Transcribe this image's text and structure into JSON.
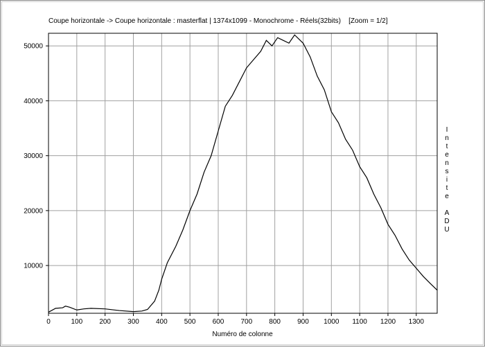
{
  "chart_data": {
    "type": "line",
    "title": "Coupe horizontale -> Coupe horizontale : masterflat | 1374x1099 - Monochrome - Réels(32bits)    [Zoom = 1/2]",
    "x_label": "Numéro de colonne",
    "y_label": "Intensite ADU",
    "xlim": [
      0,
      1374
    ],
    "ylim": [
      1300,
      52300
    ],
    "xticks": [
      0,
      100,
      200,
      300,
      400,
      500,
      600,
      700,
      800,
      900,
      1000,
      1100,
      1200,
      1300
    ],
    "yticks": [
      10000,
      20000,
      30000,
      40000,
      50000
    ],
    "grid": true,
    "x": [
      0,
      25,
      50,
      60,
      75,
      100,
      125,
      150,
      200,
      250,
      300,
      330,
      350,
      375,
      390,
      400,
      420,
      450,
      475,
      500,
      525,
      550,
      575,
      600,
      625,
      650,
      675,
      700,
      725,
      750,
      770,
      790,
      810,
      830,
      850,
      870,
      900,
      925,
      950,
      975,
      1000,
      1025,
      1050,
      1075,
      1100,
      1125,
      1150,
      1175,
      1200,
      1225,
      1250,
      1275,
      1300,
      1325,
      1350,
      1374
    ],
    "series": [
      {
        "color": "#000000",
        "values": [
          1500,
          2200,
          2300,
          2600,
          2400,
          1900,
          2100,
          2200,
          2100,
          1800,
          1600,
          1700,
          2000,
          3500,
          5500,
          7500,
          10500,
          13500,
          16500,
          20000,
          23000,
          27000,
          30000,
          34500,
          39000,
          41000,
          43500,
          46000,
          47500,
          49000,
          51000,
          50000,
          51500,
          51000,
          50500,
          52000,
          50500,
          48000,
          44500,
          42000,
          38000,
          36000,
          33000,
          31000,
          28000,
          26000,
          23000,
          20500,
          17500,
          15500,
          13000,
          11000,
          9500,
          8000,
          6700,
          5500
        ]
      }
    ]
  }
}
